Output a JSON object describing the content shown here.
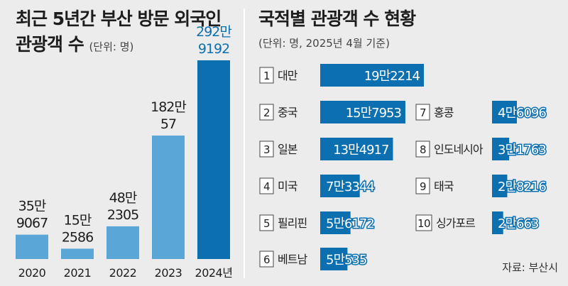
{
  "left": {
    "title_line1": "최근 5년간 부산 방문 외국인",
    "title_line2": "관광객 수",
    "unit": "(단위: 명)"
  },
  "right": {
    "title": "국적별 관광객 수 현황",
    "unit": "(단위: 명, 2025년 4월 기준)",
    "source": "자료: 부산시"
  },
  "colors": {
    "bar_light": "#5aa6d6",
    "bar_dark": "#0b6fb0",
    "label_highlight": "#0b6fb0",
    "text": "#1d1d1d",
    "background": "#ececec"
  },
  "chart_data": [
    {
      "type": "bar",
      "categories": [
        "2020",
        "2021",
        "2022",
        "2023",
        "2024년"
      ],
      "values": [
        359067,
        152586,
        482305,
        1820057,
        2929192
      ],
      "value_labels": [
        [
          "35만",
          "9067"
        ],
        [
          "15만",
          "2586"
        ],
        [
          "48만",
          "2305"
        ],
        [
          "182만",
          "57"
        ],
        [
          "292만",
          "9192"
        ]
      ],
      "highlight_index": 4,
      "title": "최근 5년간 부산 방문 외국인 관광객 수",
      "ylabel": "",
      "xlabel": ""
    },
    {
      "type": "bar",
      "orientation": "horizontal",
      "items": [
        {
          "rank": "1",
          "country": "대만",
          "value": 192214,
          "label": "19만2214"
        },
        {
          "rank": "2",
          "country": "중국",
          "value": 157953,
          "label": "15만7953"
        },
        {
          "rank": "3",
          "country": "일본",
          "value": 134917,
          "label": "13만4917"
        },
        {
          "rank": "4",
          "country": "미국",
          "value": 73344,
          "label": "7만3344"
        },
        {
          "rank": "5",
          "country": "필리핀",
          "value": 56172,
          "label": "5만6172"
        },
        {
          "rank": "6",
          "country": "베트남",
          "value": 50535,
          "label": "5만535"
        },
        {
          "rank": "7",
          "country": "홍콩",
          "value": 46096,
          "label": "4만6096"
        },
        {
          "rank": "8",
          "country": "인도네시아",
          "value": 31763,
          "label": "3만1763"
        },
        {
          "rank": "9",
          "country": "태국",
          "value": 28216,
          "label": "2만8216"
        },
        {
          "rank": "10",
          "country": "싱가포르",
          "value": 20663,
          "label": "2만663"
        }
      ],
      "title": "국적별 관광객 수 현황"
    }
  ]
}
